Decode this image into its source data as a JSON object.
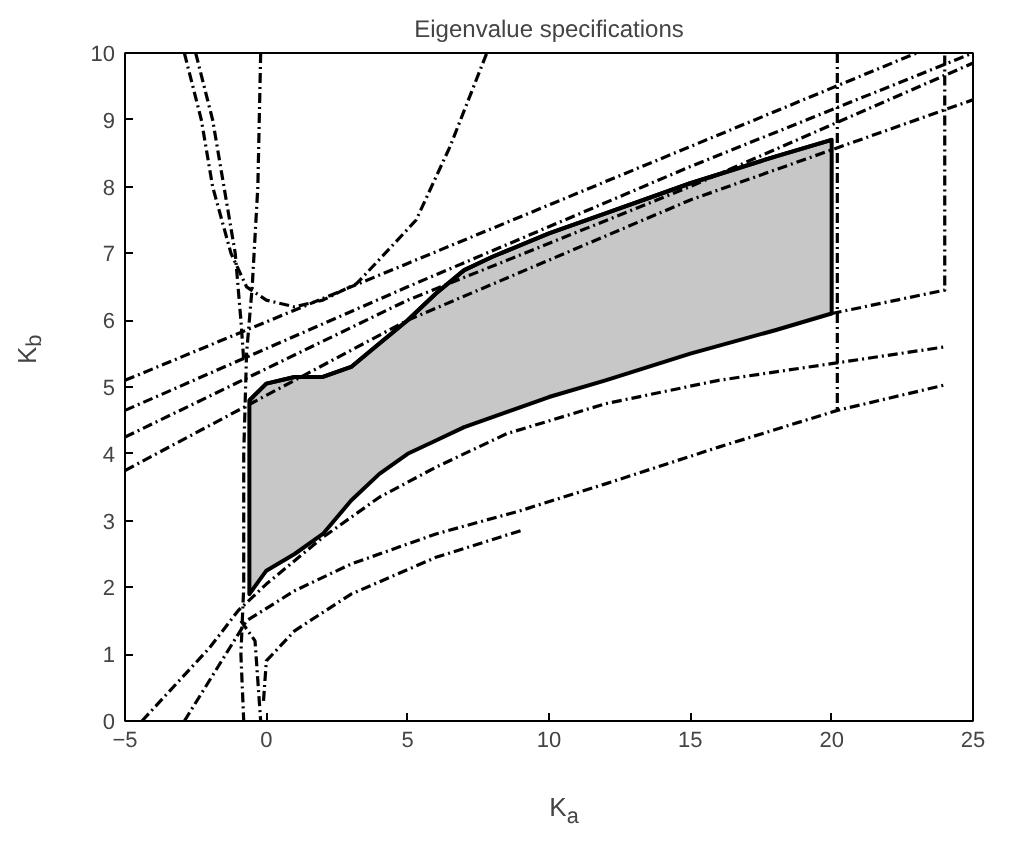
{
  "chart_data": {
    "type": "line",
    "title": "Eigenvalue specifications",
    "xlabel": "K$_{a}$",
    "ylabel": "K$_{b}$",
    "xlim": [
      -5,
      25
    ],
    "ylim": [
      0,
      10
    ],
    "xticks": [
      -5,
      0,
      5,
      10,
      15,
      20,
      25
    ],
    "yticks": [
      0,
      1,
      2,
      3,
      4,
      5,
      6,
      7,
      8,
      9,
      10
    ],
    "grid": false,
    "marker": "none",
    "series": [
      {
        "color": "#000000",
        "line_style": "solid",
        "x": [
          -0.6,
          0,
          1,
          2,
          3,
          4,
          5,
          6,
          7,
          8,
          10,
          12,
          15,
          18,
          20
        ],
        "values": [
          4.8,
          5.05,
          5.15,
          5.15,
          5.3,
          5.65,
          6.0,
          6.4,
          6.75,
          6.95,
          7.3,
          7.6,
          8.05,
          8.45,
          8.7
        ],
        "upper": [
          4.8,
          5.05,
          5.15,
          5.15,
          5.3,
          5.65,
          6.0,
          6.4,
          6.75,
          6.95,
          7.3,
          7.6,
          8.05,
          8.45,
          8.7
        ],
        "lower": [
          1.9,
          2.25,
          2.5,
          2.8,
          3.3,
          3.7,
          4.0,
          4.2,
          4.4,
          4.55,
          4.85,
          5.1,
          5.5,
          5.85,
          6.1
        ]
      },
      {
        "color": "#000000",
        "line_style": "dashdot",
        "x": [
          -5,
          5,
          15,
          23
        ],
        "values": [
          5.1,
          6.85,
          8.6,
          10
        ]
      },
      {
        "color": "#000000",
        "line_style": "dashdot",
        "x": [
          -5,
          5,
          15,
          25
        ],
        "values": [
          4.65,
          6.5,
          8.3,
          10
        ]
      },
      {
        "color": "#000000",
        "line_style": "dashdot",
        "x": [
          -5,
          5,
          15,
          25
        ],
        "values": [
          4.25,
          6.3,
          8.0,
          9.85
        ]
      },
      {
        "color": "#000000",
        "line_style": "dashdot",
        "x": [
          -5,
          5,
          15,
          25
        ],
        "values": [
          3.75,
          6.0,
          7.8,
          9.3
        ]
      },
      {
        "color": "#000000",
        "line_style": "dashdot",
        "x": [
          -2.9,
          -2.3,
          -1.9,
          -1.25,
          -0.7,
          0,
          1,
          2,
          3.2,
          4.2,
          5.3,
          6.5,
          7.8
        ],
        "values": [
          10,
          9,
          8,
          7,
          6.5,
          6.3,
          6.2,
          6.3,
          6.55,
          7.0,
          7.5,
          8.6,
          10
        ]
      },
      {
        "color": "#000000",
        "line_style": "dashdot",
        "x": [
          -2.5,
          -1.9,
          -1.5,
          -1.1,
          -0.9,
          -0.8
        ],
        "values": [
          10,
          9,
          8,
          7,
          6,
          5.4
        ]
      },
      {
        "color": "#000000",
        "line_style": "dashdot",
        "x": [
          -0.2,
          -0.3,
          -0.5,
          -0.7,
          -0.8,
          -0.8,
          -0.9,
          -0.8
        ],
        "values": [
          10,
          8,
          6.5,
          5.5,
          4,
          2,
          1,
          0
        ]
      },
      {
        "color": "#000000",
        "line_style": "dashdot",
        "x": [
          -0.9,
          -0.4,
          -0.3,
          -0.2
        ],
        "values": [
          1.5,
          1.2,
          0.6,
          0
        ]
      },
      {
        "color": "#000000",
        "line_style": "dashdot",
        "x": [
          -4.4,
          -2,
          -1,
          0,
          2,
          4,
          6,
          8.5,
          12,
          16,
          20,
          24
        ],
        "values": [
          0,
          1.1,
          1.65,
          2.05,
          2.75,
          3.35,
          3.8,
          4.3,
          4.75,
          5.1,
          5.35,
          5.6
        ]
      },
      {
        "color": "#000000",
        "line_style": "dashdot",
        "x": [
          -2.9,
          -0.7,
          1,
          3,
          6,
          9,
          12,
          16,
          20.2,
          24
        ],
        "values": [
          0,
          1.5,
          1.95,
          2.35,
          2.8,
          3.15,
          3.55,
          4.1,
          4.65,
          5.03
        ]
      },
      {
        "color": "#000000",
        "line_style": "dashdot",
        "x": [
          -0.1,
          0,
          1,
          3,
          6,
          9
        ],
        "values": [
          0.3,
          0.9,
          1.35,
          1.9,
          2.45,
          2.85
        ]
      },
      {
        "color": "#000000",
        "line_style": "dashdot",
        "x": [
          20,
          24,
          24
        ],
        "values": [
          6.1,
          6.45,
          10
        ]
      },
      {
        "color": "#000000",
        "line_style": "dashdot",
        "x": [
          20.2,
          20.2
        ],
        "values": [
          10,
          4.65
        ]
      }
    ]
  }
}
